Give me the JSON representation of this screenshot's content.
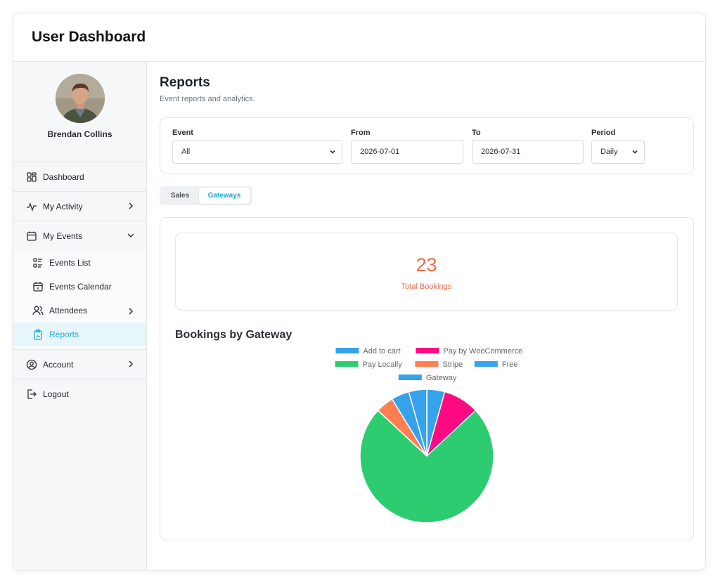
{
  "header": {
    "title": "User Dashboard"
  },
  "profile": {
    "name": "Brendan Collins"
  },
  "sidebar": {
    "dashboard": "Dashboard",
    "activity": "My Activity",
    "events": "My Events",
    "events_sub": {
      "list": "Events List",
      "calendar": "Events Calendar",
      "attendees": "Attendees",
      "reports": "Reports"
    },
    "account": "Account",
    "logout": "Logout"
  },
  "page": {
    "title": "Reports",
    "subtitle": "Event reports and analytics."
  },
  "filters": {
    "event_label": "Event",
    "event_value": "All",
    "from_label": "From",
    "from_value": "2026-07-01",
    "to_label": "To",
    "to_value": "2026-07-31",
    "period_label": "Period",
    "period_value": "Daily"
  },
  "tabs": {
    "sales": "Sales",
    "gateways": "Gateways",
    "active": "Gateways"
  },
  "stats": {
    "total_value": "23",
    "total_label": "Total Bookings"
  },
  "chart_title": "Bookings by Gateway",
  "colors": {
    "accent": "#1fa7d6",
    "stat": "#ee6a4d"
  },
  "chart_data": {
    "type": "pie",
    "series": [
      {
        "name": "Add to cart",
        "value": 1,
        "color": "#36a2eb"
      },
      {
        "name": "Pay by WooCommerce",
        "value": 2,
        "color": "#ff0a82"
      },
      {
        "name": "Pay Locally",
        "value": 17,
        "color": "#2ecc71"
      },
      {
        "name": "Stripe",
        "value": 1,
        "color": "#ff7f50"
      },
      {
        "name": "Free",
        "value": 1,
        "color": "#36a2eb"
      },
      {
        "name": "Gateway",
        "value": 1,
        "color": "#36a2eb"
      }
    ],
    "legend": "top"
  }
}
